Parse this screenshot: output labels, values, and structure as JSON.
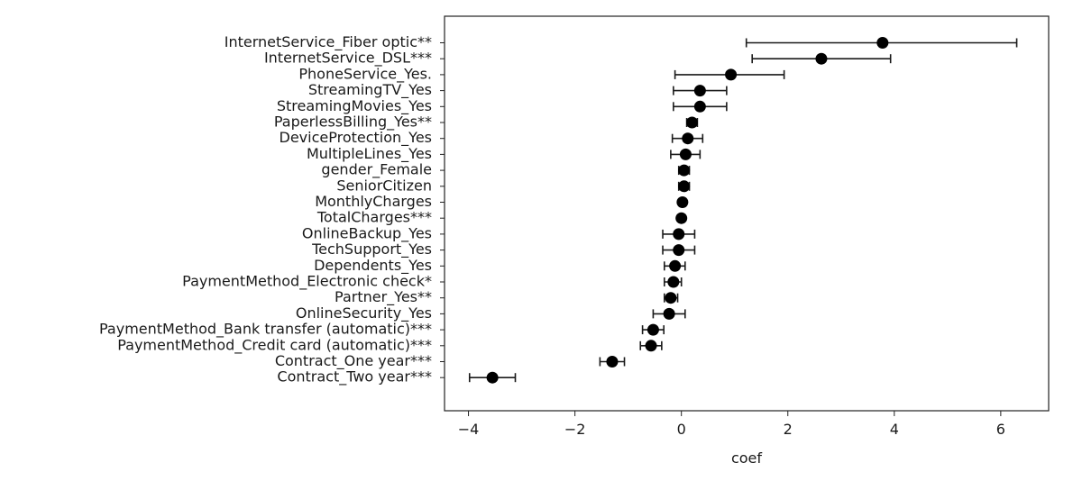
{
  "chart_data": {
    "type": "scatter",
    "xlabel": "coef",
    "ylabel": "",
    "xlim": [
      -4.45,
      6.9
    ],
    "x_ticks": [
      -4,
      -2,
      0,
      2,
      4,
      6
    ],
    "x_tick_labels": [
      "−4",
      "−2",
      "0",
      "2",
      "4",
      "6"
    ],
    "grid": false,
    "marker_color": "#000000",
    "series": [
      {
        "labels": [
          "InternetService_Fiber optic**",
          "InternetService_DSL***",
          "PhoneService_Yes.",
          "StreamingTV_Yes",
          "StreamingMovies_Yes",
          "PaperlessBilling_Yes**",
          "DeviceProtection_Yes",
          "MultipleLines_Yes",
          "gender_Female",
          "SeniorCitizen",
          "MonthlyCharges",
          "TotalCharges***",
          "OnlineBackup_Yes",
          "TechSupport_Yes",
          "Dependents_Yes",
          "PaymentMethod_Electronic check*",
          "Partner_Yes**",
          "OnlineSecurity_Yes",
          "PaymentMethod_Bank transfer (automatic)***",
          "PaymentMethod_Credit card (automatic)***",
          "Contract_One year***",
          "Contract_Two year***"
        ],
        "coef": [
          3.78,
          2.63,
          0.93,
          0.35,
          0.35,
          0.2,
          0.12,
          0.08,
          0.05,
          0.05,
          0.02,
          0.0,
          -0.05,
          -0.05,
          -0.12,
          -0.15,
          -0.2,
          -0.23,
          -0.53,
          -0.57,
          -1.3,
          -3.55
        ],
        "lower": [
          1.22,
          1.33,
          -0.12,
          -0.15,
          -0.15,
          0.1,
          -0.17,
          -0.2,
          -0.05,
          -0.05,
          -0.02,
          -0.03,
          -0.35,
          -0.35,
          -0.32,
          -0.32,
          -0.32,
          -0.53,
          -0.73,
          -0.77,
          -1.53,
          -3.98
        ],
        "upper": [
          6.3,
          3.93,
          1.93,
          0.85,
          0.85,
          0.3,
          0.4,
          0.35,
          0.15,
          0.15,
          0.05,
          0.03,
          0.25,
          0.25,
          0.07,
          0.0,
          -0.07,
          0.07,
          -0.33,
          -0.37,
          -1.07,
          -3.12
        ]
      }
    ]
  }
}
